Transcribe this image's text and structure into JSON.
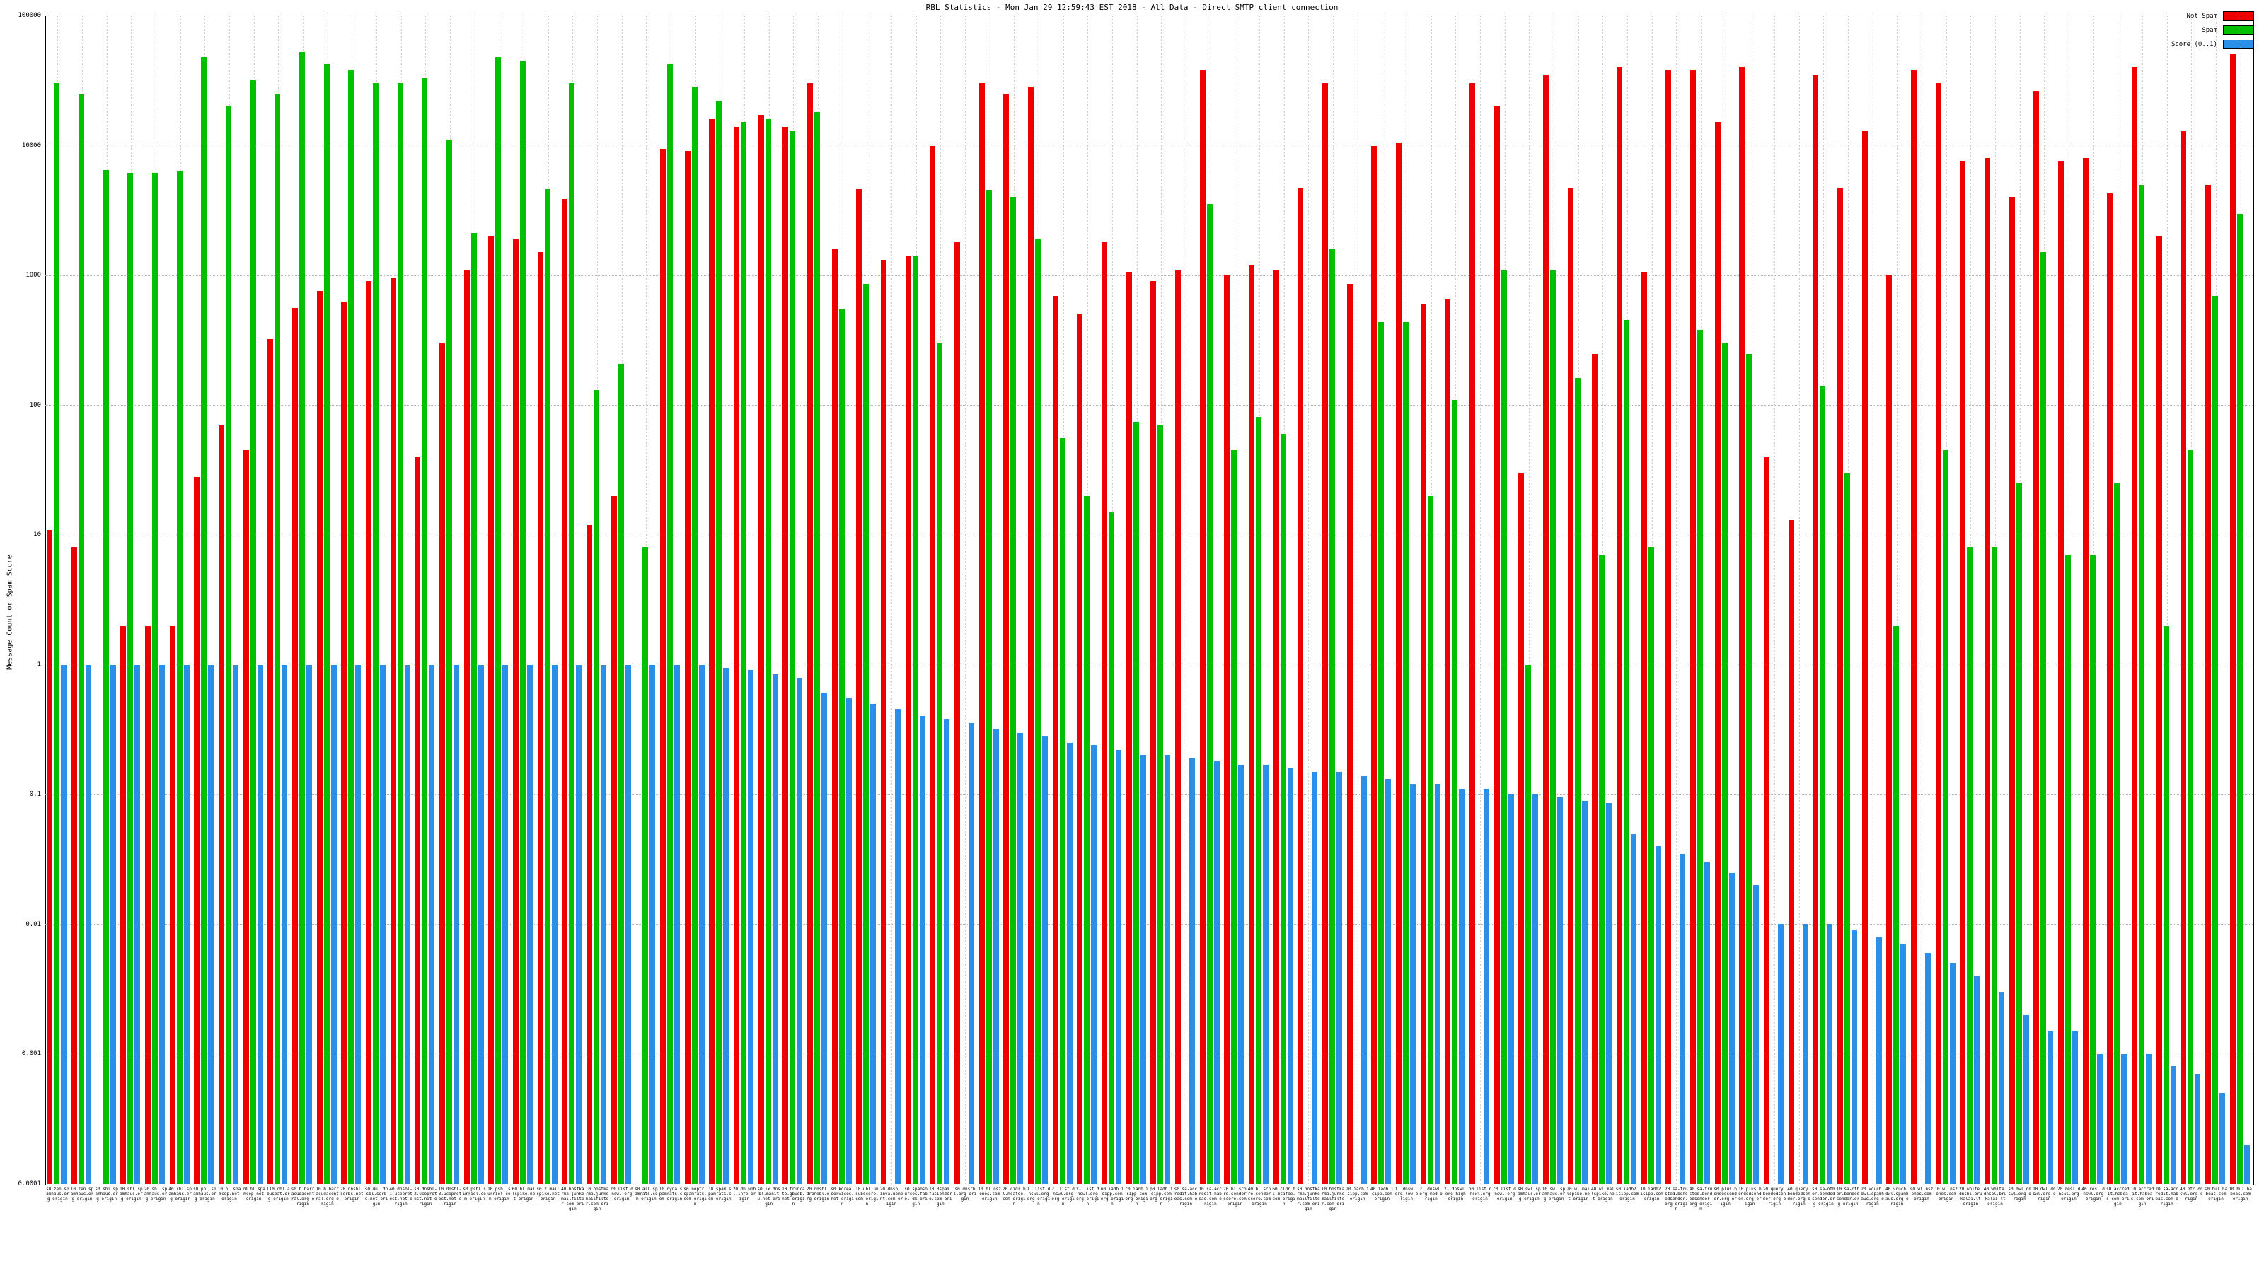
{
  "chart_data": {
    "type": "bar",
    "title": "RBL Statistics - Mon Jan 29 12:59:43 EST 2018 - All Data - Direct SMTP client connection",
    "ylabel": "Message Count or Spam Score",
    "xlabel": "",
    "log_y": true,
    "grid": true,
    "legend_position": "top-right",
    "ylim": [
      0.0001,
      100000
    ],
    "y_ticks": [
      "100000",
      "10000",
      "1000",
      "100",
      "10",
      "1",
      "0.1",
      "0.01",
      "0.001",
      "0.0001"
    ],
    "legend": [
      {
        "label": "Not Spam",
        "color": "#ee0000"
      },
      {
        "label": "Spam",
        "color": "#00c000"
      },
      {
        "label": "Score (0..1)",
        "color": "#2a8fe8"
      }
    ],
    "categories": [
      "s0 zen.spamhaus.org origin",
      "10 zen.spamhaus.org origin",
      "s0 sbl.spamhaus.org origin",
      "10 sbl.spamhaus.org origin",
      "20 sbl.spamhaus.org origin",
      "40 xbl.spamhaus.org origin",
      "s0 pbl.spamhaus.org origin",
      "10 bl.spamcop.net origin",
      "20 bl.spamcop.net origin",
      "l10 cbl.abuseat.org origin",
      "s0 b.barracudacentral.org origin",
      "10 b.barracudacentral.org origin",
      "20 dnsbl.sorbs.net origin",
      "s0 dul.dnsbl.sorbs.net origin",
      "40 dnsbl-1.uceprotect.net origin",
      "s0 dnsbl-2.uceprotect.net origin",
      "10 dnsbl-3.uceprotect.net origin",
      "s0 psbl.surriel.com origin",
      "10 psbl.surriel.com origin",
      "60 bl.mailspike.net origin",
      "s0 z.mailspike.net origin",
      "40 hostkarma.junkemailfilter.com origin",
      "10 hostkarma.junkemailfilter.com origin",
      "20 list.dnswl.org origin",
      "s0 all.spamrats.com origin",
      "10 dyna.spamrats.com origin",
      "s0 noptr.spamrats.com origin",
      "10 spam.spamrats.com origin",
      "20 db.wpbl.info origin",
      "s0 ix.dnsbl.manitu.net origin",
      "10 truncate.gbudb.net origin",
      "20 dnsbl.dronebl.org origin",
      "s0 korea.services.net origin",
      "10 ubl.unsubscore.com origin",
      "20 dnsbl.invaluement.com origin",
      "s0 spamsources.fabel.dk origin",
      "10 0spam.fusionzero.com origin",
      "s0 dnsrbl.org origin",
      "10 bl.nszones.com origin",
      "20 cidr.bl.mcafee.com origin",
      "1. list.dnswl.org org origin",
      "2. list.dnswl.org org origin",
      "Y- list.dnswl.org org origin",
      "n0 iadb.isipp.com org origin",
      "c0 iadb.isipp.com org origin",
      "p0 iadb.isipp.com org origin",
      "s0 sa-accredit.habeas.com origin",
      "10 sa-accredit.habeas.com origin",
      "20 bl.score.senderscore.com origin",
      "40 bl.score.senderscore.com origin",
      "60 cidr.bl.mcafee.com origin",
      "s0 hostkarma.junkemailfilter.com origin",
      "10 hostkarma.junkemailfilter.com origin",
      "20 iadb.isipp.com origin",
      "40 iadb.isipp.com origin",
      "1. dnswl.org low origin",
      "2. dnswl.org med origin",
      "Y- dnswl.org high origin",
      "n0 list.dnswl.org origin",
      "c0 list.dnswl.org origin",
      "s0 swl.spamhaus.org origin",
      "10 swl.spamhaus.org origin",
      "20 wl.mailspike.net origin",
      "40 wl.mailspike.net origin",
      "s0 iadb2.isipp.com origin",
      "10 iadb2.isipp.com origin",
      "20 sa-trusted.bondedsender.org origin",
      "40 sa-trusted.bondedsender.org origin",
      "s0 plus.bondedsender.org origin",
      "10 plus.bondedsender.org origin",
      "20 query.bondedsender.org origin",
      "40 query.bondedsender.org origin",
      "s0 sa-other.bondedsender.org origin",
      "10 sa-other.bondedsender.org origin",
      "20 vouch.dwl.spamhaus.org origin",
      "40 vouch.dwl.spamhaus.org origin",
      "s0 wl.nszones.com origin",
      "10 wl.nszones.com origin",
      "20 white.dnsbl.brukalai.lt origin",
      "40 white.dnsbl.brukalai.lt origin",
      "s0 dwl.dnswl.org origin",
      "10 dwl.dnswl.org origin",
      "20 resl.dnswl.org origin",
      "40 resl.dnswl.org origin",
      "s0 accredit.habeas.com origin",
      "10 accredit.habeas.com origin",
      "20 sa-accredit.habeas.com origin",
      "40 btc.dnswl.org origin",
      "s0 hul.habeas.com origin",
      "10 hul.habeas.com origin"
    ],
    "series": [
      {
        "name": "Not Spam",
        "color": "#ee0000",
        "values": [
          11,
          8,
          0,
          2,
          2,
          2,
          28,
          70,
          45,
          320,
          560,
          750,
          620,
          900,
          950,
          40,
          300,
          1100,
          2000,
          1900,
          1500,
          3900,
          12,
          20,
          0,
          9500,
          9000,
          16000,
          14000,
          17000,
          14000,
          30000,
          1600,
          4600,
          1300,
          1400,
          9800,
          1800,
          30000,
          25000,
          28000,
          700,
          500,
          1800,
          1050,
          900,
          1100,
          38000,
          1000,
          1200,
          1100,
          4700,
          30000,
          850,
          10000,
          10500,
          600,
          650,
          30000,
          20000,
          30,
          35000,
          4700,
          250,
          40000,
          1050,
          38000,
          38000,
          15000,
          40000,
          40,
          13,
          35000,
          4700,
          13000,
          1000,
          38000,
          30000,
          7500,
          8000,
          4000,
          26000,
          7500,
          8000,
          4300,
          40000,
          2000,
          13000,
          5000,
          50000
        ]
      },
      {
        "name": "Spam",
        "color": "#00c000",
        "values": [
          30000,
          25000,
          6500,
          6200,
          6200,
          6300,
          48000,
          20000,
          32000,
          25000,
          52000,
          42000,
          38000,
          30000,
          30000,
          33000,
          11000,
          2100,
          48000,
          45000,
          4600,
          30000,
          130,
          210,
          8,
          42000,
          28000,
          22000,
          15000,
          16000,
          13000,
          18000,
          550,
          850,
          0,
          1400,
          300,
          0,
          4500,
          4000,
          1900,
          55,
          20,
          15,
          75,
          70,
          0,
          3500,
          45,
          80,
          60,
          0,
          1600,
          0,
          430,
          430,
          20,
          110,
          0,
          1100,
          1,
          1100,
          160,
          7,
          450,
          8,
          0,
          380,
          300,
          250,
          0,
          0,
          140,
          30,
          0,
          2,
          0,
          45,
          8,
          8,
          25,
          1500,
          7,
          7,
          25,
          5000,
          2,
          45,
          700,
          3000
        ]
      },
      {
        "name": "Score (0..1)",
        "color": "#2a8fe8",
        "values": [
          1,
          1,
          1,
          1,
          1,
          1,
          1,
          1,
          1,
          1,
          1,
          1,
          1,
          1,
          1,
          1,
          1,
          1,
          1,
          1,
          1,
          1,
          1,
          1,
          1,
          1,
          1,
          0.95,
          0.9,
          0.85,
          0.8,
          0.6,
          0.55,
          0.5,
          0.45,
          0.4,
          0.38,
          0.35,
          0.32,
          0.3,
          0.28,
          0.25,
          0.24,
          0.22,
          0.2,
          0.2,
          0.19,
          0.18,
          0.17,
          0.17,
          0.16,
          0.15,
          0.15,
          0.14,
          0.13,
          0.12,
          0.12,
          0.11,
          0.11,
          0.1,
          0.1,
          0.095,
          0.09,
          0.085,
          0.05,
          0.04,
          0.035,
          0.03,
          0.025,
          0.02,
          0.01,
          0.01,
          0.01,
          0.009,
          0.008,
          0.007,
          0.006,
          0.005,
          0.004,
          0.003,
          0.002,
          0.0015,
          0.0015,
          0.001,
          0.001,
          0.001,
          0.0008,
          0.0007,
          0.0005,
          0.0002
        ]
      }
    ]
  }
}
